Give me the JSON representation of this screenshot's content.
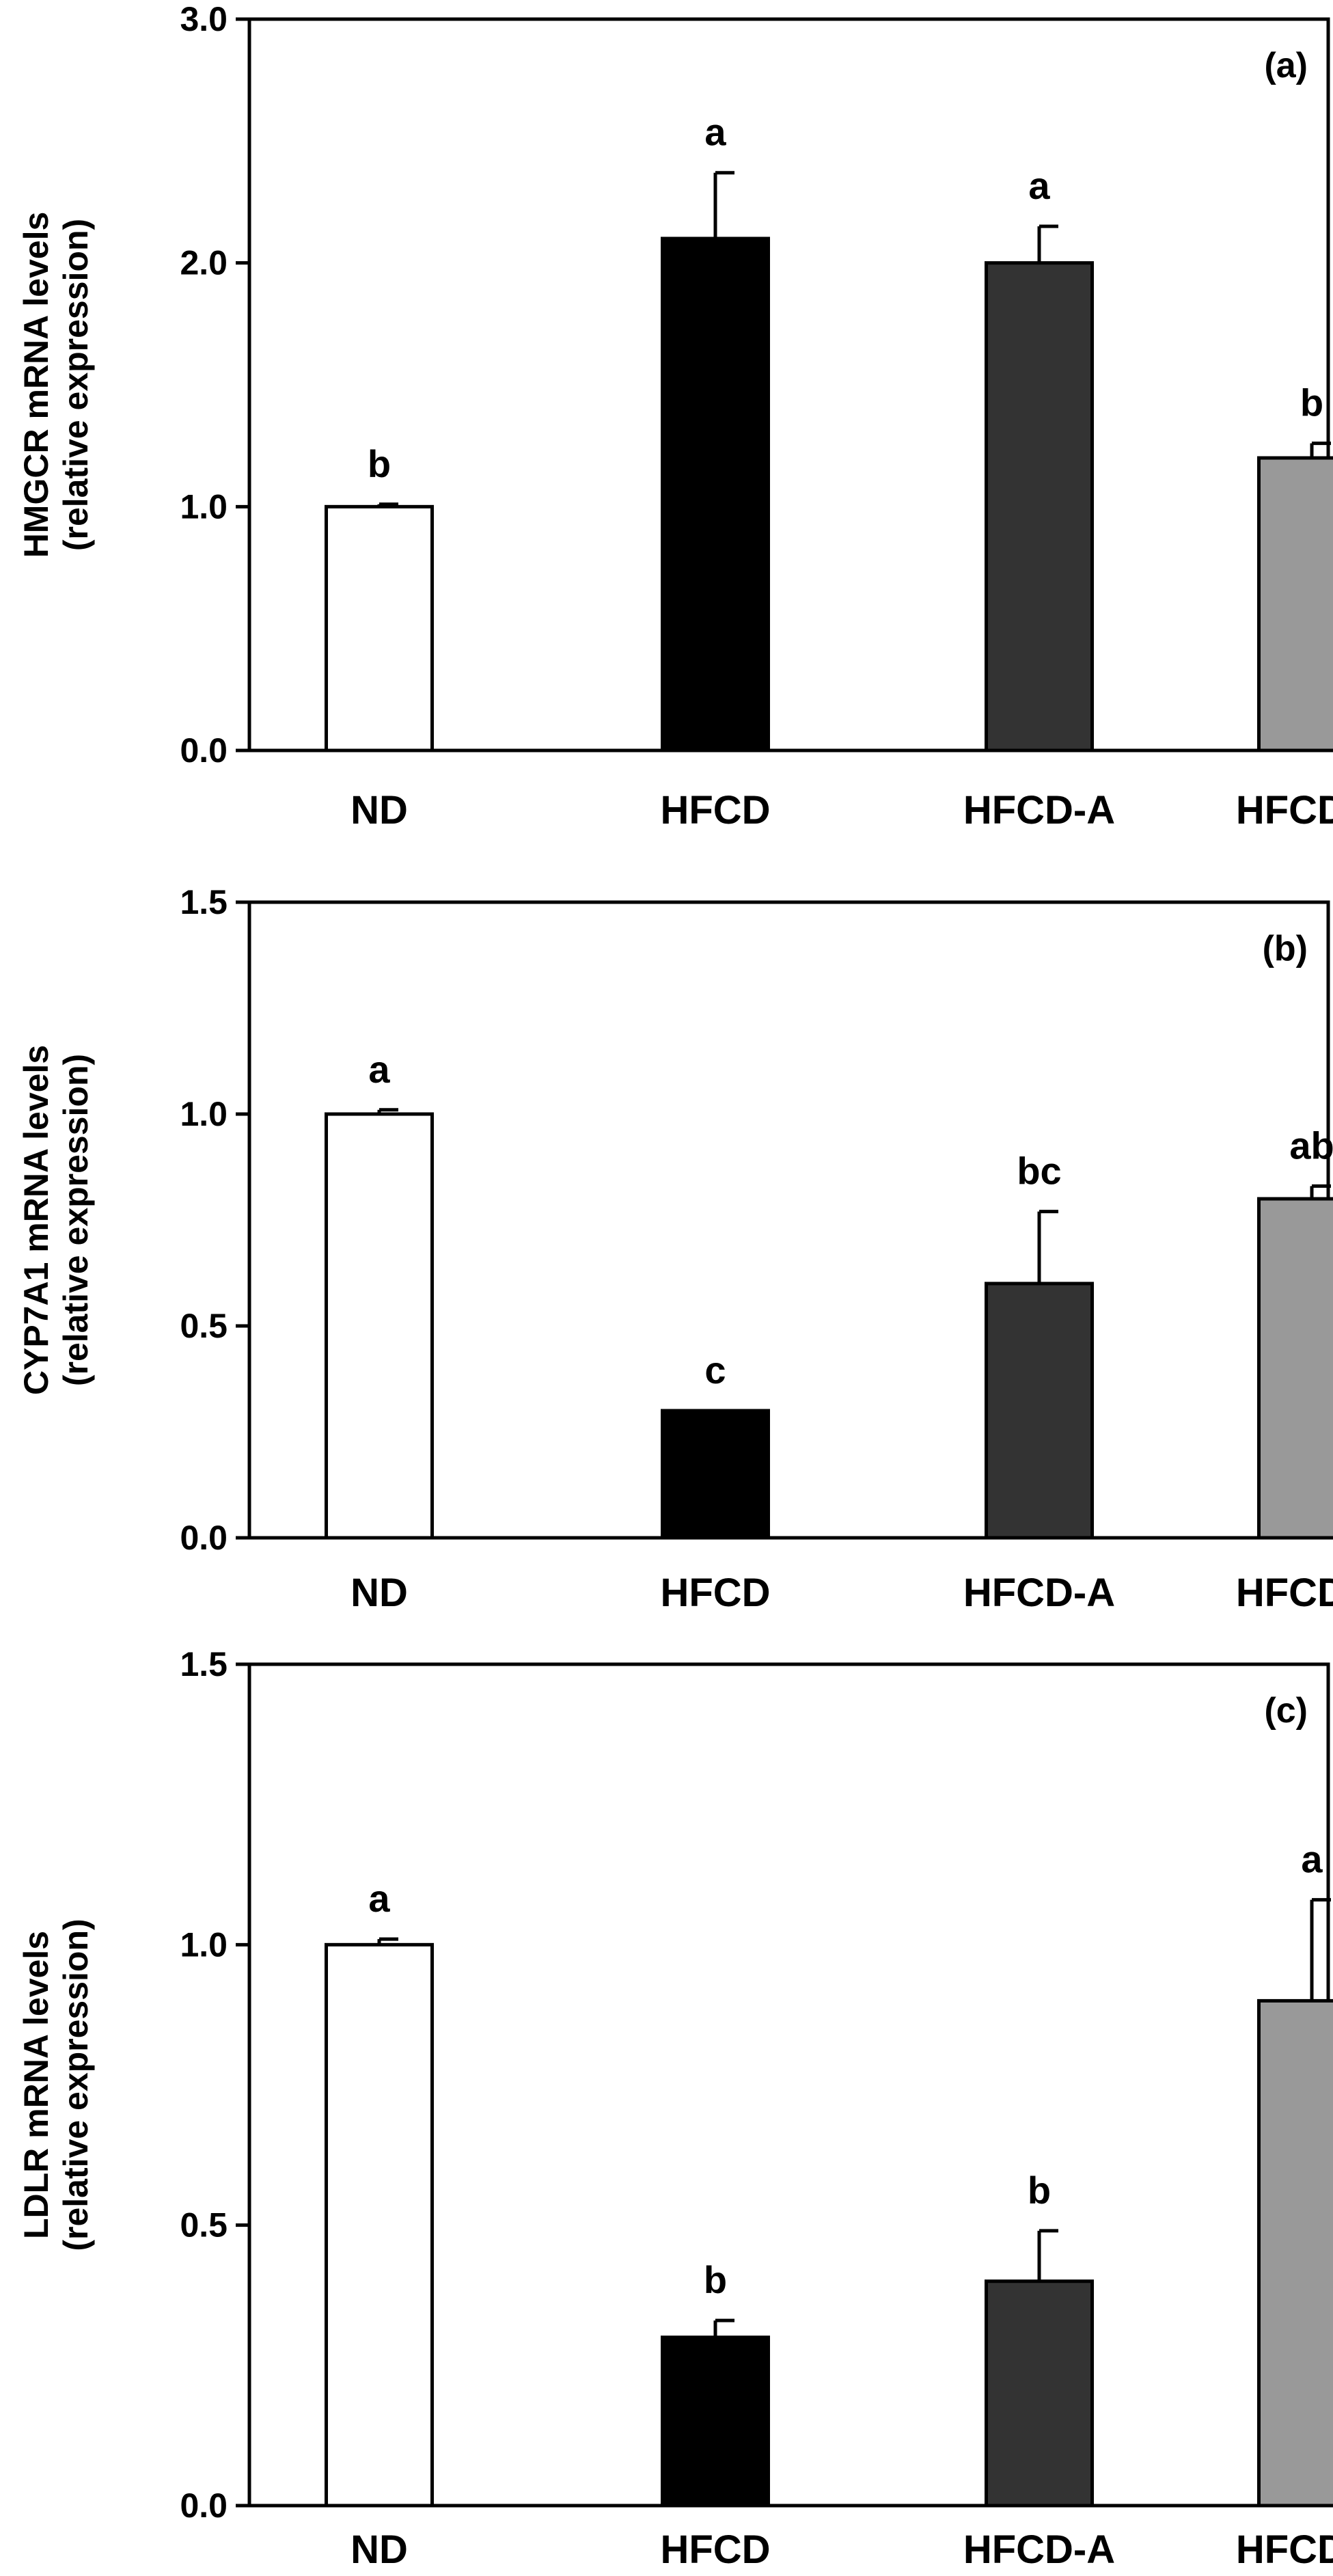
{
  "chart_data": [
    {
      "type": "bar",
      "panel_label": "(a)",
      "ylabel": "HMGCR mRNA levels",
      "ylabel_sub": "(relative expression)",
      "ylim": [
        0,
        3.0
      ],
      "yticks": [
        "0.0",
        "1.0",
        "2.0",
        "3.0"
      ],
      "categories": [
        "ND",
        "HFCD",
        "HFCD-A",
        "HFCD-B"
      ],
      "values": [
        1.0,
        2.1,
        2.0,
        1.2
      ],
      "errors": [
        0.01,
        0.27,
        0.15,
        0.06
      ],
      "significance": [
        "b",
        "a",
        "a",
        "b"
      ],
      "bar_colors": [
        "#ffffff",
        "#000000",
        "#333333",
        "#999999"
      ],
      "grid": false
    },
    {
      "type": "bar",
      "panel_label": "(b)",
      "ylabel": "CYP7A1 mRNA levels",
      "ylabel_sub": "(relative expression)",
      "ylim": [
        0,
        1.5
      ],
      "yticks": [
        "0.0",
        "0.5",
        "1.0",
        "1.5"
      ],
      "categories": [
        "ND",
        "HFCD",
        "HFCD-A",
        "HFCD-B"
      ],
      "values": [
        1.0,
        0.3,
        0.6,
        0.8
      ],
      "errors": [
        0.01,
        0.0,
        0.17,
        0.03
      ],
      "significance": [
        "a",
        "c",
        "bc",
        "ab"
      ],
      "bar_colors": [
        "#ffffff",
        "#000000",
        "#333333",
        "#999999"
      ],
      "grid": false
    },
    {
      "type": "bar",
      "panel_label": "(c)",
      "ylabel": "LDLR mRNA levels",
      "ylabel_sub": "(relative expression)",
      "ylim": [
        0,
        1.5
      ],
      "yticks": [
        "0.0",
        "0.5",
        "1.0",
        "1.5"
      ],
      "categories": [
        "ND",
        "HFCD",
        "HFCD-A",
        "HFCD-B"
      ],
      "values": [
        1.0,
        0.3,
        0.4,
        0.9
      ],
      "errors": [
        0.01,
        0.03,
        0.09,
        0.18
      ],
      "significance": [
        "a",
        "b",
        "b",
        "a"
      ],
      "bar_colors": [
        "#ffffff",
        "#000000",
        "#333333",
        "#999999"
      ],
      "grid": false
    }
  ]
}
